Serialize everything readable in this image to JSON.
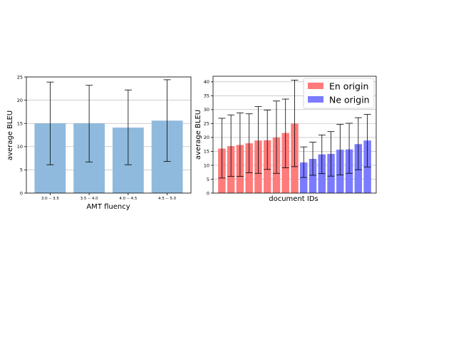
{
  "chart_data": [
    {
      "type": "bar",
      "xlabel": "AMT fluency",
      "ylabel": "average BLEU",
      "ylim": [
        0,
        25
      ],
      "yticks": [
        0,
        5,
        10,
        15,
        20,
        25
      ],
      "grid": true,
      "color": "#8fbadd",
      "categories": [
        "3.0 -- 3.5",
        "3.5 -- 4.0",
        "4.0 -- 4.5",
        "4.5 -- 5.0"
      ],
      "values": [
        15.0,
        15.0,
        14.1,
        15.6
      ],
      "error_low": [
        6.1,
        6.7,
        6.1,
        6.8
      ],
      "error_high": [
        23.9,
        23.2,
        22.2,
        24.4
      ]
    },
    {
      "type": "bar",
      "xlabel": "document IDs",
      "ylabel": "average BLEU",
      "ylim": [
        0,
        42
      ],
      "yticks": [
        0,
        5,
        10,
        15,
        20,
        25,
        30,
        35,
        40
      ],
      "grid": true,
      "legend": "top-right",
      "series": [
        {
          "name": "En origin",
          "color": "#ff7b7b",
          "values": [
            16.0,
            16.9,
            17.3,
            17.9,
            18.9,
            19.0,
            20.0,
            21.6,
            25.0
          ],
          "error_low": [
            5.4,
            6.0,
            6.0,
            7.3,
            7.1,
            8.5,
            7.1,
            9.1,
            9.5
          ],
          "error_high": [
            26.9,
            28.1,
            28.8,
            28.5,
            31.1,
            29.8,
            33.1,
            33.8,
            40.6
          ]
        },
        {
          "name": "Ne origin",
          "color": "#7b7bff",
          "values": [
            11.0,
            12.3,
            13.9,
            14.1,
            15.6,
            15.7,
            17.6,
            18.9
          ],
          "error_low": [
            5.6,
            6.4,
            7.0,
            6.1,
            6.5,
            7.1,
            8.4,
            9.4
          ],
          "error_high": [
            16.6,
            18.3,
            20.9,
            22.1,
            24.7,
            25.1,
            27.1,
            28.3
          ]
        }
      ]
    }
  ]
}
